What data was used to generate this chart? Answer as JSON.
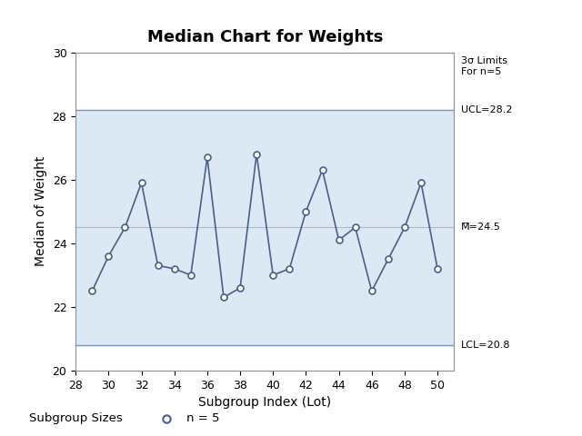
{
  "title": "Median Chart for Weights",
  "xlabel": "Subgroup Index (Lot)",
  "ylabel": "Median of Weight",
  "x": [
    29,
    30,
    31,
    32,
    33,
    34,
    35,
    36,
    37,
    38,
    39,
    40,
    41,
    42,
    43,
    44,
    45,
    46,
    47,
    48,
    49,
    50
  ],
  "y": [
    22.5,
    23.6,
    24.5,
    25.9,
    23.3,
    23.2,
    23.0,
    26.7,
    22.3,
    22.6,
    26.8,
    23.0,
    23.2,
    25.0,
    26.3,
    24.1,
    24.5,
    22.5,
    23.5,
    24.5,
    25.9,
    23.2
  ],
  "UCL": 28.2,
  "LCL": 20.8,
  "CL": 24.5,
  "ylim": [
    20,
    30
  ],
  "xlim": [
    28,
    51
  ],
  "xticks": [
    28,
    30,
    32,
    34,
    36,
    38,
    40,
    42,
    44,
    46,
    48,
    50
  ],
  "yticks": [
    20,
    22,
    24,
    26,
    28,
    30
  ],
  "line_color": "#4a5f8a",
  "marker_color": "#4a5f8a",
  "ucl_color": "#7096c0",
  "lcl_color": "#7096c0",
  "cl_color": "#b0b8c0",
  "fill_color": "#dce9f5",
  "title_fontsize": 13,
  "label_fontsize": 10,
  "tick_fontsize": 9,
  "annot_fontsize": 8,
  "subgroup_label": "Subgroup Sizes",
  "subgroup_text": "n = 5",
  "sigma_label": "3σ Limits\nFor n=5",
  "ucl_label": "UCL=28.2",
  "lcl_label": "LCL=20.8",
  "cl_label": "M̅=24.5"
}
